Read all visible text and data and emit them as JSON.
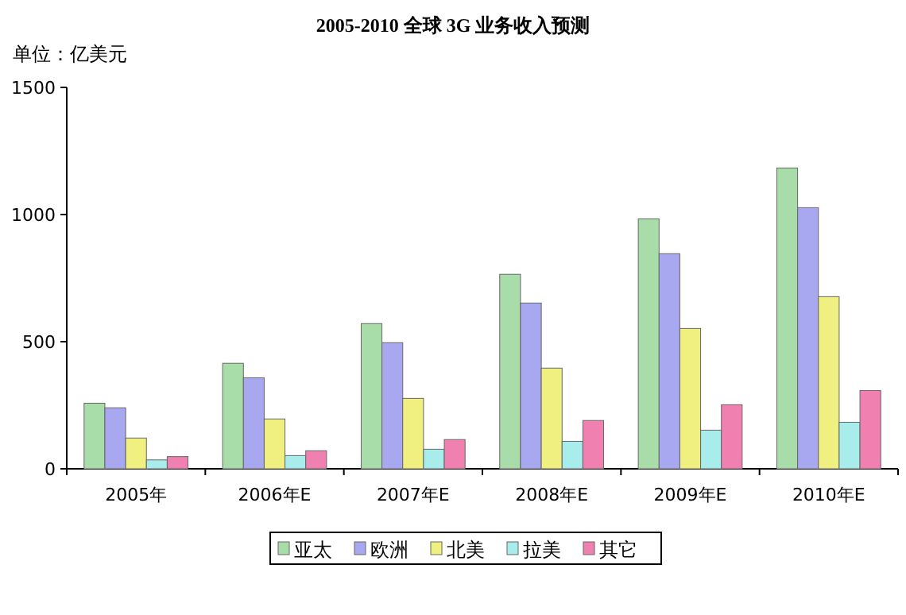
{
  "chart_data": {
    "type": "bar",
    "title": "2005-2010 全球 3G 业务收入预测",
    "ylabel": "单位：亿美元",
    "categories": [
      "2005年",
      "2006年E",
      "2007年E",
      "2008年E",
      "2009年E",
      "2010年E"
    ],
    "series": [
      {
        "name": "亚太",
        "color": "#a8dca8",
        "values": [
          258,
          415,
          571,
          765,
          983,
          1183
        ]
      },
      {
        "name": "欧洲",
        "color": "#a8a8f0",
        "values": [
          240,
          358,
          496,
          652,
          846,
          1027
        ]
      },
      {
        "name": "北美",
        "color": "#f0f080",
        "values": [
          121,
          196,
          277,
          396,
          552,
          677
        ]
      },
      {
        "name": "拉美",
        "color": "#a8ecec",
        "values": [
          35,
          52,
          77,
          108,
          152,
          183
        ]
      },
      {
        "name": "其它",
        "color": "#f080b0",
        "values": [
          48,
          71,
          115,
          190,
          252,
          308
        ]
      }
    ],
    "ylim": [
      0,
      1500
    ],
    "yticks": [
      0,
      500,
      1000,
      1500
    ],
    "grid": false,
    "legend": "bottom"
  }
}
